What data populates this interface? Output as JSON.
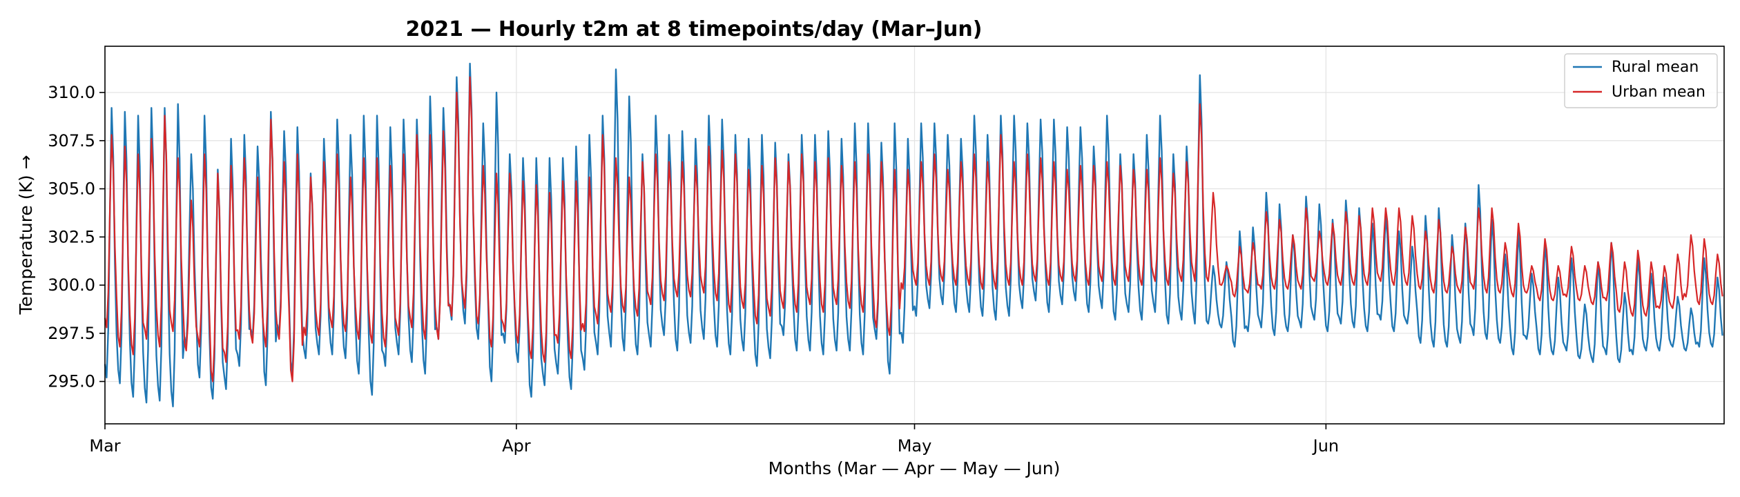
{
  "chart_data": {
    "type": "line",
    "title": "2021 — Hourly t2m at 8 timepoints/day (Mar–Jun)",
    "xlabel": "Months (Mar — Apr — May — Jun)",
    "ylabel": "Temperature (K) →",
    "x_tick_labels": [
      "Mar",
      "Apr",
      "May",
      "Jun"
    ],
    "x_tick_days": [
      0,
      31,
      61,
      92
    ],
    "xlim_days": [
      0,
      122
    ],
    "ylim": [
      292.8,
      312.4
    ],
    "y_ticks": [
      295.0,
      297.5,
      300.0,
      302.5,
      305.0,
      307.5,
      310.0
    ],
    "y_tick_labels": [
      "295.0",
      "297.5",
      "300.0",
      "302.5",
      "305.0",
      "307.5",
      "310.0"
    ],
    "grid": true,
    "legend_position": "top-right",
    "samples_per_day": 8,
    "series": [
      {
        "name": "Rural mean",
        "color": "#1f77b4",
        "daily_max": [
          309.2,
          309.0,
          308.8,
          309.2,
          309.2,
          309.4,
          306.8,
          308.8,
          306.0,
          307.6,
          307.8,
          307.2,
          309.0,
          308.0,
          308.2,
          305.8,
          307.6,
          308.6,
          307.8,
          308.8,
          308.8,
          308.2,
          308.6,
          308.6,
          309.8,
          309.2,
          310.8,
          311.5,
          308.4,
          310.0,
          306.8,
          306.6,
          306.6,
          306.6,
          306.6,
          307.2,
          307.8,
          308.8,
          311.2,
          309.8,
          306.8,
          308.8,
          307.8,
          308.0,
          307.6,
          308.8,
          308.6,
          307.8,
          307.6,
          307.8,
          307.4,
          306.8,
          307.8,
          307.8,
          308.0,
          307.6,
          308.4,
          308.4,
          307.4,
          308.4,
          307.6,
          308.4,
          308.4,
          307.8,
          307.6,
          308.8,
          307.8,
          308.8,
          308.8,
          308.4,
          308.6,
          308.6,
          308.2,
          308.2,
          307.2,
          308.8,
          306.8,
          306.8,
          307.8,
          308.8,
          306.8,
          307.2,
          310.9,
          301.0,
          301.2,
          302.8,
          303.0,
          304.8,
          304.2,
          302.6,
          304.6,
          304.2,
          303.4,
          304.4,
          304.0,
          303.2,
          303.6,
          302.8,
          302.0,
          303.6,
          304.0,
          302.6,
          303.2,
          305.2,
          303.4,
          301.6,
          302.8,
          300.6,
          302.2,
          300.4,
          301.4,
          299.0,
          301.2,
          302.2,
          299.6,
          301.4,
          300.6,
          300.4,
          299.4,
          298.8,
          301.4,
          300.4
        ],
        "daily_min": [
          295.2,
          294.9,
          294.2,
          293.9,
          294.0,
          293.7,
          296.8,
          295.2,
          294.1,
          294.6,
          295.8,
          297.2,
          294.8,
          297.4,
          295.4,
          296.2,
          296.4,
          296.4,
          296.2,
          295.4,
          294.3,
          295.8,
          296.4,
          296.0,
          295.4,
          297.2,
          298.2,
          298.0,
          297.2,
          295.0,
          297.0,
          296.0,
          294.2,
          294.8,
          295.4,
          294.6,
          295.6,
          296.4,
          296.8,
          296.6,
          296.4,
          296.8,
          297.4,
          296.6,
          297.0,
          297.2,
          296.8,
          296.4,
          296.6,
          295.8,
          296.2,
          297.4,
          296.6,
          296.6,
          296.4,
          296.6,
          296.6,
          296.4,
          297.2,
          295.4,
          297.0,
          298.4,
          298.8,
          299.0,
          298.6,
          298.6,
          298.4,
          298.2,
          298.4,
          298.8,
          299.2,
          298.6,
          299.0,
          299.2,
          298.6,
          298.8,
          298.2,
          298.6,
          298.2,
          298.6,
          298.0,
          298.2,
          298.0,
          298.0,
          297.8,
          296.8,
          297.6,
          297.8,
          297.4,
          297.6,
          297.8,
          298.2,
          297.6,
          298.0,
          297.8,
          297.6,
          298.2,
          297.6,
          298.0,
          297.0,
          296.8,
          296.8,
          297.0,
          297.4,
          297.2,
          297.0,
          296.4,
          297.2,
          296.4,
          296.4,
          296.6,
          296.2,
          296.0,
          296.4,
          296.0,
          296.4,
          296.6,
          296.6,
          296.8,
          296.6,
          296.8,
          296.8
        ]
      },
      {
        "name": "Urban mean",
        "color": "#d62728",
        "daily_max": [
          307.8,
          307.2,
          306.8,
          307.6,
          308.8,
          306.6,
          304.4,
          306.8,
          305.8,
          306.2,
          306.6,
          305.6,
          308.6,
          306.4,
          306.8,
          305.6,
          306.4,
          306.8,
          305.6,
          306.6,
          306.6,
          306.2,
          306.8,
          307.8,
          307.8,
          308.0,
          310.0,
          310.8,
          306.2,
          305.8,
          305.8,
          305.4,
          305.2,
          304.8,
          305.4,
          305.4,
          305.6,
          307.8,
          306.6,
          305.6,
          306.4,
          306.8,
          306.4,
          306.4,
          306.2,
          307.2,
          307.0,
          306.8,
          306.0,
          306.2,
          306.6,
          306.4,
          306.8,
          306.4,
          306.6,
          306.2,
          306.4,
          306.8,
          306.4,
          306.0,
          306.0,
          306.4,
          306.8,
          306.0,
          306.4,
          306.8,
          306.4,
          307.8,
          306.4,
          306.8,
          306.6,
          306.4,
          306.0,
          306.2,
          306.2,
          306.4,
          306.2,
          306.0,
          306.0,
          306.6,
          305.8,
          306.4,
          309.4,
          304.8,
          301.0,
          302.0,
          302.2,
          303.8,
          303.4,
          302.6,
          304.0,
          302.8,
          303.2,
          303.8,
          303.6,
          304.0,
          304.0,
          304.0,
          303.6,
          302.8,
          303.4,
          302.0,
          303.0,
          304.0,
          304.0,
          302.2,
          303.2,
          301.0,
          302.4,
          301.0,
          302.0,
          301.0,
          301.2,
          302.2,
          301.2,
          301.8,
          301.2,
          301.0,
          301.6,
          302.6,
          302.4,
          301.6
        ],
        "daily_min": [
          297.8,
          296.8,
          296.4,
          297.2,
          296.8,
          297.6,
          296.6,
          296.8,
          295.0,
          296.0,
          297.2,
          297.0,
          296.8,
          297.2,
          295.0,
          297.4,
          297.4,
          297.8,
          297.6,
          297.2,
          297.0,
          296.8,
          297.4,
          297.8,
          297.2,
          297.2,
          298.4,
          298.8,
          298.0,
          296.8,
          297.6,
          297.0,
          296.2,
          296.0,
          297.0,
          296.2,
          297.6,
          298.0,
          298.6,
          298.6,
          298.4,
          299.0,
          299.2,
          299.4,
          299.4,
          299.6,
          299.2,
          298.6,
          298.8,
          298.0,
          298.4,
          298.8,
          298.6,
          299.0,
          298.6,
          299.0,
          298.8,
          298.6,
          297.8,
          297.4,
          299.8,
          300.0,
          300.0,
          300.2,
          300.0,
          300.0,
          299.8,
          299.8,
          300.0,
          300.0,
          300.2,
          300.0,
          300.2,
          300.2,
          300.0,
          300.2,
          300.0,
          300.2,
          300.0,
          300.2,
          300.0,
          300.2,
          300.2,
          300.2,
          300.0,
          299.4,
          299.6,
          299.8,
          299.8,
          299.8,
          299.8,
          300.2,
          300.0,
          300.0,
          300.0,
          300.0,
          300.2,
          300.0,
          300.0,
          299.8,
          299.6,
          299.6,
          299.6,
          299.8,
          299.6,
          299.6,
          299.4,
          299.6,
          299.2,
          299.2,
          299.4,
          299.2,
          299.0,
          299.2,
          298.6,
          298.4,
          298.4,
          298.8,
          298.8,
          299.4,
          299.0,
          299.0
        ]
      }
    ]
  }
}
